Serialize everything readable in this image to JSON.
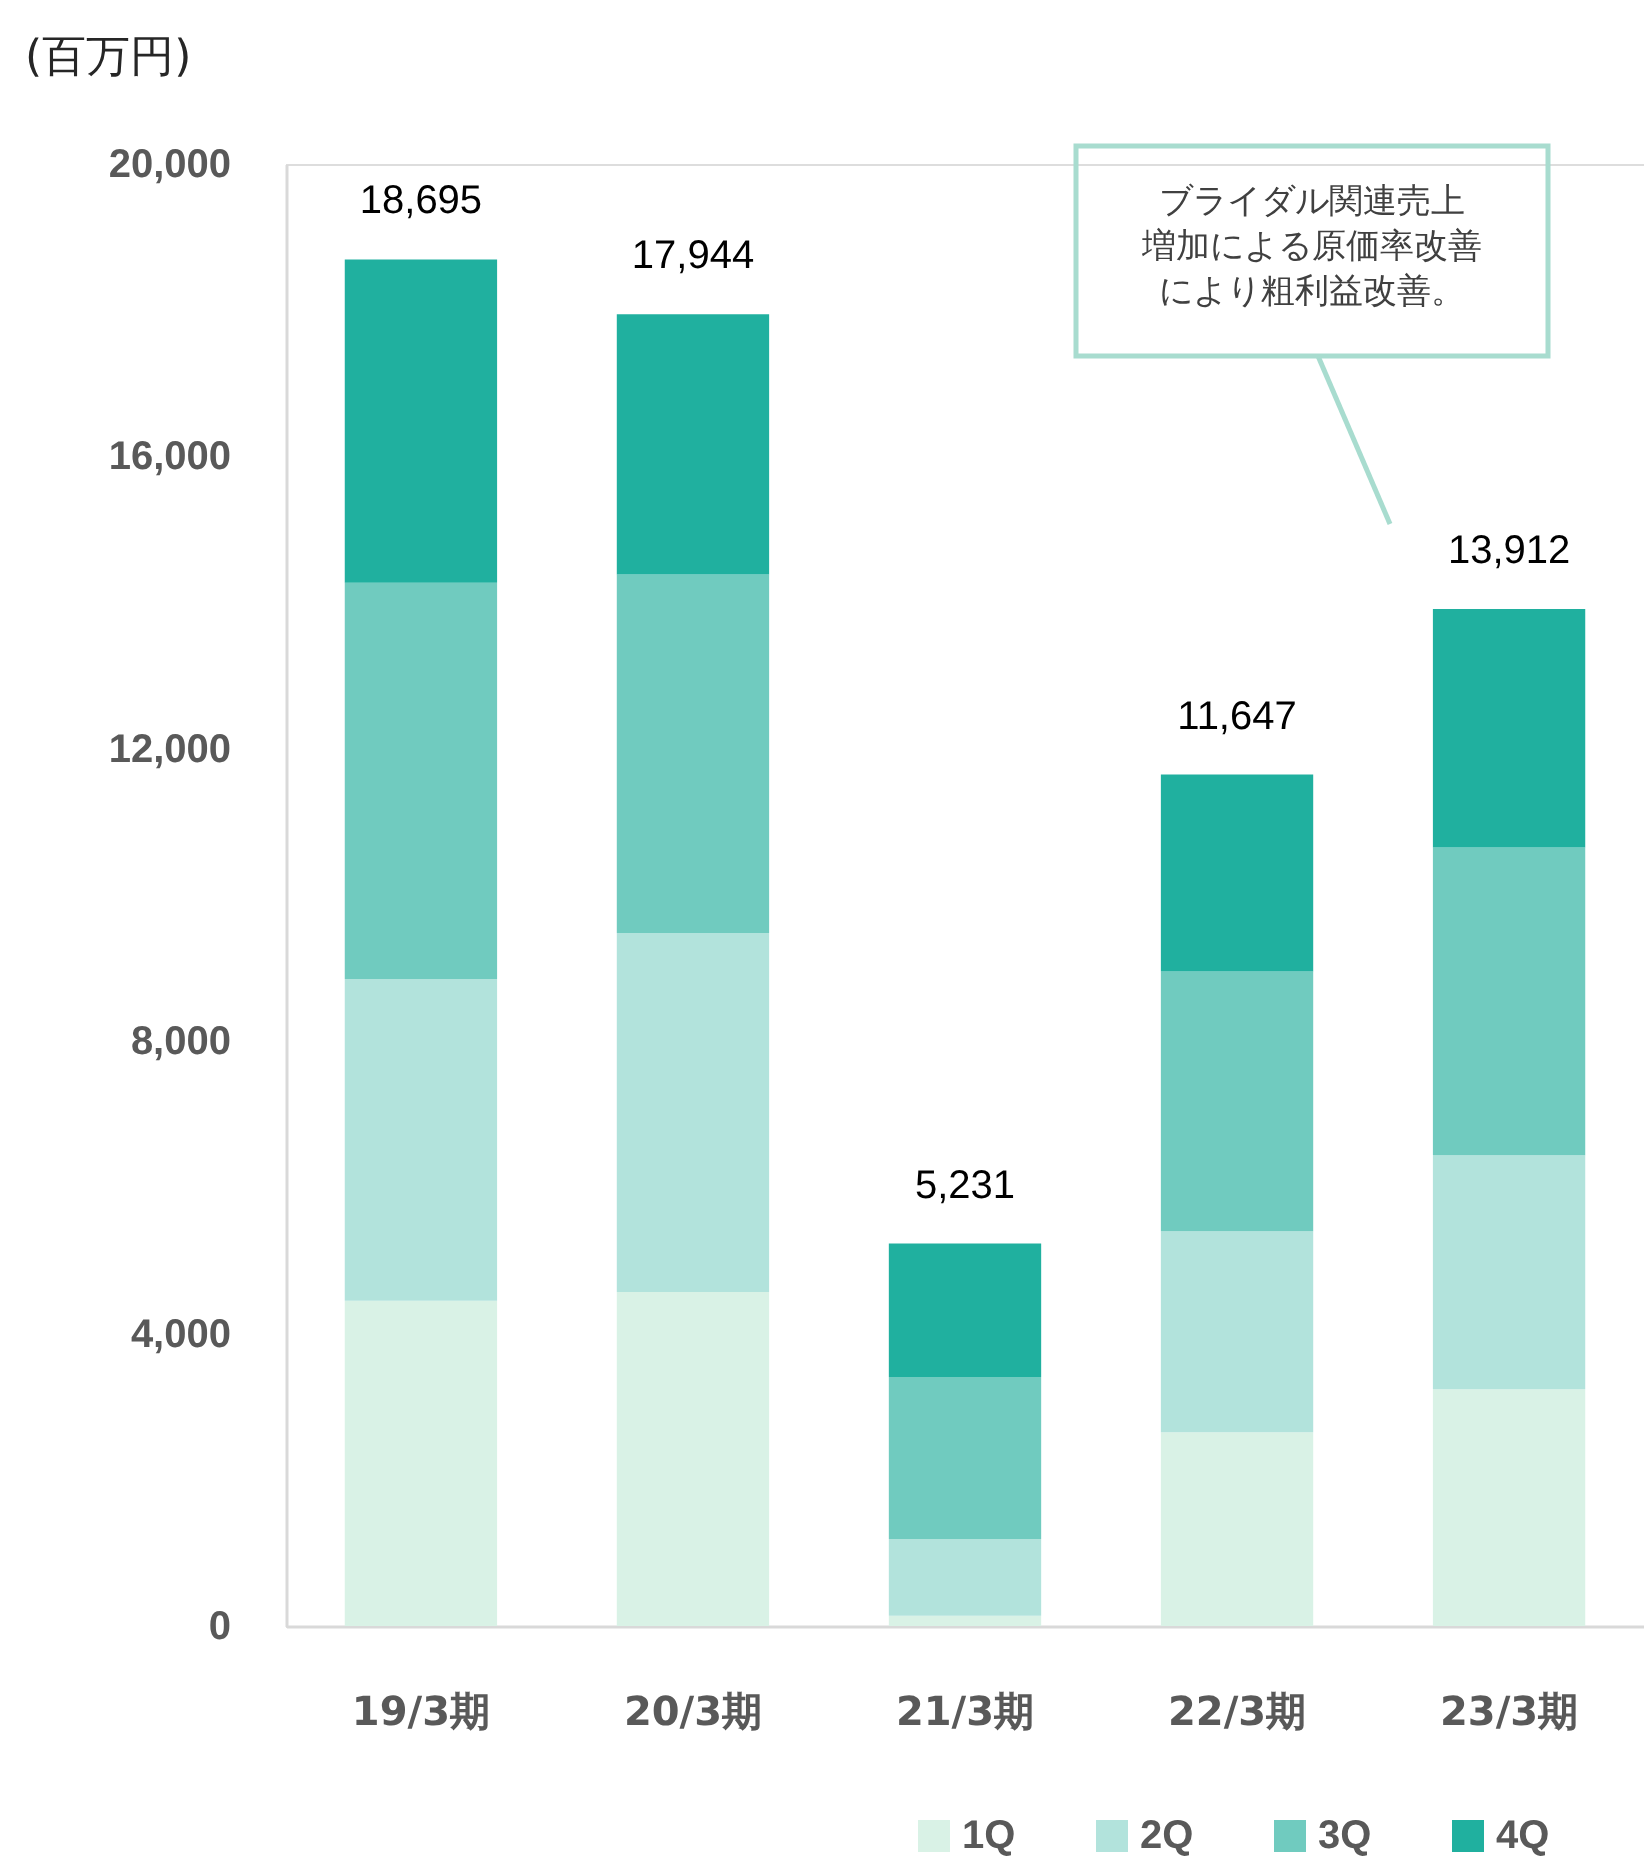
{
  "chart_data": {
    "type": "bar",
    "stacked": true,
    "ylabel": "(百万円)",
    "categories": [
      "19/3期",
      "20/3期",
      "21/3期",
      "22/3期",
      "23/3期"
    ],
    "series": [
      {
        "name": "1Q",
        "color": "#d9f2e6",
        "values": [
          4450,
          4570,
          140,
          2650,
          3240
        ]
      },
      {
        "name": "2Q",
        "color": "#b2e3dc",
        "values": [
          4400,
          4910,
          1050,
          2750,
          3200
        ]
      },
      {
        "name": "3Q",
        "color": "#70cbbf",
        "values": [
          5420,
          4905,
          2215,
          3555,
          4210
        ]
      },
      {
        "name": "4Q",
        "color": "#20b09f",
        "values": [
          4425,
          3559,
          1826,
          2692,
          3262
        ]
      }
    ],
    "totals": [
      "18,695",
      "17,944",
      "5,231",
      "11,647",
      "13,912"
    ],
    "ylim": [
      0,
      20000
    ],
    "yticks": [
      0,
      {
        "value": 4000,
        "label": "4,000"
      },
      {
        "value": 8000,
        "label": "8,000"
      },
      {
        "value": 12000,
        "label": "12,000"
      },
      {
        "value": 16000,
        "label": "16,000"
      },
      {
        "value": 20000,
        "label": "20,000"
      }
    ],
    "grid": false,
    "legend": "bottom right",
    "annotations": [
      "ブライダル関連売上増加による原価率改善により粗利益改善。"
    ]
  }
}
